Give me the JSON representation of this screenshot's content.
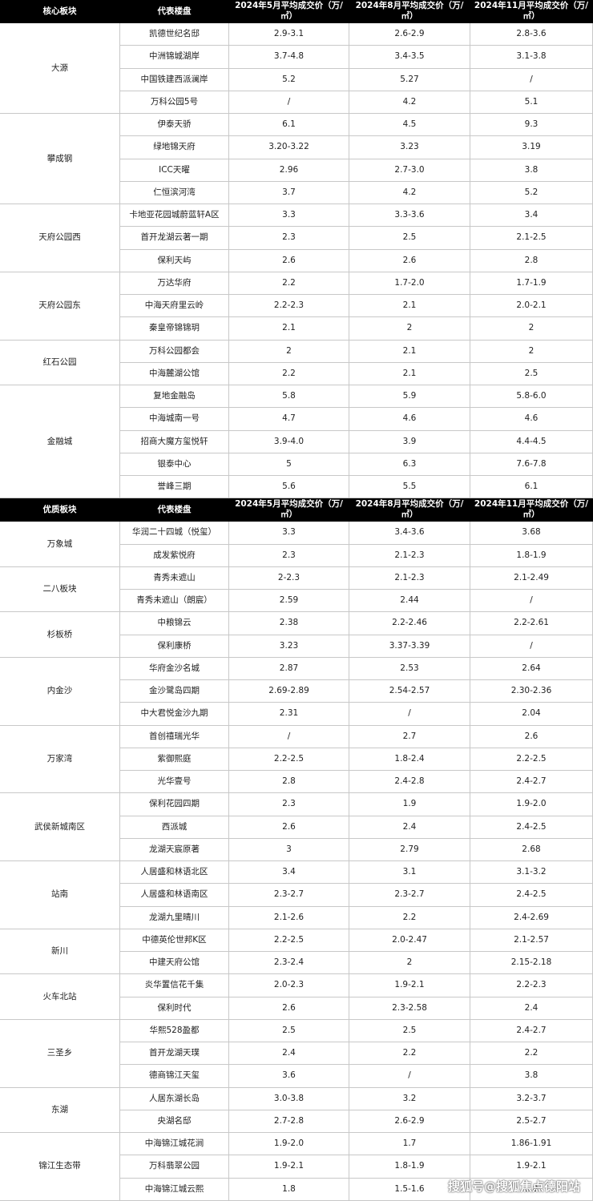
{
  "tables": [
    {
      "header": [
        "核心板块",
        "代表楼盘",
        "2024年5月平均成交价（万/㎡）",
        "2024年8月平均成交价（万/㎡）",
        "2024年11月平均成交价（万/㎡）"
      ],
      "groups": [
        {
          "name": "大源",
          "rows": [
            [
              "凯德世纪名邸",
              "2.9-3.1",
              "2.6-2.9",
              "2.8-3.6"
            ],
            [
              "中洲锦城湖岸",
              "3.7-4.8",
              "3.4-3.5",
              "3.1-3.8"
            ],
            [
              "中国铁建西派澜岸",
              "5.2",
              "5.27",
              "/"
            ],
            [
              "万科公园5号",
              "/",
              "4.2",
              "5.1"
            ]
          ]
        },
        {
          "name": "攀成钢",
          "rows": [
            [
              "伊泰天骄",
              "6.1",
              "4.5",
              "9.3"
            ],
            [
              "绿地锦天府",
              "3.20-3.22",
              "3.23",
              "3.19"
            ],
            [
              "ICC天曜",
              "2.96",
              "2.7-3.0",
              "3.8"
            ],
            [
              "仁恒滨河湾",
              "3.7",
              "4.2",
              "5.2"
            ]
          ]
        },
        {
          "name": "天府公园西",
          "rows": [
            [
              "卡地亚花园城蔚蓝轩A区",
              "3.3",
              "3.3-3.6",
              "3.4"
            ],
            [
              "首开龙湖云著一期",
              "2.3",
              "2.5",
              "2.1-2.5"
            ],
            [
              "保利天屿",
              "2.6",
              "2.6",
              "2.8"
            ]
          ]
        },
        {
          "name": "天府公园东",
          "rows": [
            [
              "万达华府",
              "2.2",
              "1.7-2.0",
              "1.7-1.9"
            ],
            [
              "中海天府里云岭",
              "2.2-2.3",
              "2.1",
              "2.0-2.1"
            ],
            [
              "秦皇帝锦锦玥",
              "2.1",
              "2",
              "2"
            ]
          ]
        },
        {
          "name": "红石公园",
          "rows": [
            [
              "万科公园都会",
              "2",
              "2.1",
              "2"
            ],
            [
              "中海麓湖公馆",
              "2.2",
              "2.1",
              "2.5"
            ]
          ]
        },
        {
          "name": "金融城",
          "rows": [
            [
              "复地金融岛",
              "5.8",
              "5.9",
              "5.8-6.0"
            ],
            [
              "中海城南一号",
              "4.7",
              "4.6",
              "4.6"
            ],
            [
              "招商大魔方玺悦轩",
              "3.9-4.0",
              "3.9",
              "4.4-4.5"
            ],
            [
              "银泰中心",
              "5",
              "6.3",
              "7.6-7.8"
            ],
            [
              "誉峰三期",
              "5.6",
              "5.5",
              "6.1"
            ]
          ]
        }
      ]
    },
    {
      "header": [
        "优质板块",
        "代表楼盘",
        "2024年5月平均成交价（万/㎡）",
        "2024年8月平均成交价（万/㎡）",
        "2024年11月平均成交价（万/㎡）"
      ],
      "groups": [
        {
          "name": "万象城",
          "rows": [
            [
              "华润二十四城（悦玺）",
              "3.3",
              "3.4-3.6",
              "3.68"
            ],
            [
              "成发紫悦府",
              "2.3",
              "2.1-2.3",
              "1.8-1.9"
            ]
          ]
        },
        {
          "name": "二八板块",
          "rows": [
            [
              "青秀未遮山",
              "2-2.3",
              "2.1-2.3",
              "2.1-2.49"
            ],
            [
              "青秀未遮山（朗宸）",
              "2.59",
              "2.44",
              "/"
            ]
          ]
        },
        {
          "name": "杉板桥",
          "rows": [
            [
              "中粮锦云",
              "2.38",
              "2.2-2.46",
              "2.2-2.61"
            ],
            [
              "保利康桥",
              "3.23",
              "3.37-3.39",
              "/"
            ]
          ]
        },
        {
          "name": "内金沙",
          "rows": [
            [
              "华府金沙名城",
              "2.87",
              "2.53",
              "2.64"
            ],
            [
              "金沙鹭岛四期",
              "2.69-2.89",
              "2.54-2.57",
              "2.30-2.36"
            ],
            [
              "中大君悦金沙九期",
              "2.31",
              "/",
              "2.04"
            ]
          ]
        },
        {
          "name": "万家湾",
          "rows": [
            [
              "首创禧瑞光华",
              "/",
              "2.7",
              "2.6"
            ],
            [
              "紫御熙庭",
              "2.2-2.5",
              "1.8-2.4",
              "2.2-2.5"
            ],
            [
              "光华壹号",
              "2.8",
              "2.4-2.8",
              "2.4-2.7"
            ]
          ]
        },
        {
          "name": "武侯新城南区",
          "rows": [
            [
              "保利花园四期",
              "2.3",
              "1.9",
              "1.9-2.0"
            ],
            [
              "西派城",
              "2.6",
              "2.4",
              "2.4-2.5"
            ],
            [
              "龙湖天宸原著",
              "3",
              "2.79",
              "2.68"
            ]
          ]
        },
        {
          "name": "站南",
          "rows": [
            [
              "人居盛和林语北区",
              "3.4",
              "3.1",
              "3.1-3.2"
            ],
            [
              "人居盛和林语南区",
              "2.3-2.7",
              "2.3-2.7",
              "2.4-2.5"
            ],
            [
              "龙湖九里晴川",
              "2.1-2.6",
              "2.2",
              "2.4-2.69"
            ]
          ]
        },
        {
          "name": "新川",
          "rows": [
            [
              "中德英伦世邦K区",
              "2.2-2.5",
              "2.0-2.47",
              "2.1-2.57"
            ],
            [
              "中建天府公馆",
              "2.3-2.4",
              "2",
              "2.15-2.18"
            ]
          ]
        },
        {
          "name": "火车北站",
          "rows": [
            [
              "炎华置信花千集",
              "2.0-2.3",
              "1.9-2.1",
              "2.2-2.3"
            ],
            [
              "保利时代",
              "2.6",
              "2.3-2.58",
              "2.4"
            ]
          ]
        },
        {
          "name": "三圣乡",
          "rows": [
            [
              "华熙528盈都",
              "2.5",
              "2.5",
              "2.4-2.7"
            ],
            [
              "首开龙湖天璞",
              "2.4",
              "2.2",
              "2.2"
            ],
            [
              "德商锦江天玺",
              "3.6",
              "/",
              "3.8"
            ]
          ]
        },
        {
          "name": "东湖",
          "rows": [
            [
              "人居东湖长岛",
              "3.0-3.8",
              "3.2",
              "3.2-3.7"
            ],
            [
              "央湖名邸",
              "2.7-2.8",
              "2.6-2.9",
              "2.5-2.7"
            ]
          ]
        },
        {
          "name": "锦江生态带",
          "rows": [
            [
              "中海锦江城花涧",
              "1.9-2.0",
              "1.7",
              "1.86-1.91"
            ],
            [
              "万科翡翠公园",
              "1.9-2.1",
              "1.8-1.9",
              "1.9-2.1"
            ],
            [
              "中海锦江城云熙",
              "1.8",
              "1.5-1.6",
              "1.8"
            ]
          ]
        }
      ]
    }
  ],
  "watermark": "搜狐号@搜狐焦点德阳站"
}
